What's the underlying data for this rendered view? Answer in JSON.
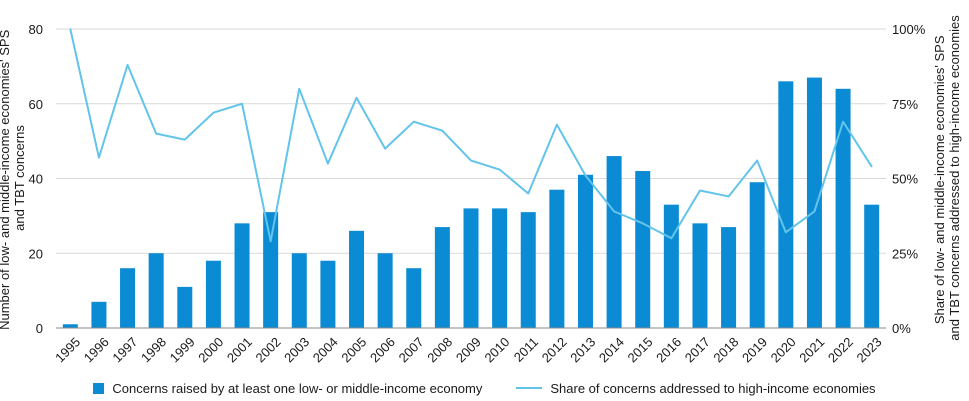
{
  "colors": {
    "bar": "#0a8bd3",
    "line": "#63c4ea",
    "grid": "#d9d9d9"
  },
  "chart_data": {
    "type": "bar",
    "categories": [
      "1995",
      "1996",
      "1997",
      "1998",
      "1999",
      "2000",
      "2001",
      "2002",
      "2003",
      "2004",
      "2005",
      "2006",
      "2007",
      "2008",
      "2009",
      "2010",
      "2011",
      "2012",
      "2013",
      "2014",
      "2015",
      "2016",
      "2017",
      "2018",
      "2019",
      "2020",
      "2021",
      "2022",
      "2023"
    ],
    "series": [
      {
        "name": "Concerns raised by at least one low- or middle-income economy",
        "type": "bar",
        "axis": "left",
        "values": [
          1,
          7,
          16,
          20,
          11,
          18,
          28,
          31,
          20,
          18,
          26,
          20,
          16,
          27,
          32,
          32,
          31,
          37,
          41,
          46,
          42,
          33,
          28,
          27,
          39,
          66,
          67,
          64,
          33
        ]
      },
      {
        "name": "Share of concerns addressed to high-income economies",
        "type": "line",
        "axis": "right",
        "values": [
          100,
          57,
          88,
          65,
          63,
          72,
          75,
          29,
          80,
          55,
          77,
          60,
          69,
          66,
          56,
          53,
          45,
          68,
          51,
          39,
          35,
          30,
          46,
          44,
          56,
          32,
          39,
          69,
          54
        ]
      }
    ],
    "ylabel": "Number of low- and middle-income economies' SPS and TBT concerns",
    "y2label": "Share of low- and middle-income economies' SPS and TBT concerns  addressed to high-income economies",
    "ylim": [
      0,
      80
    ],
    "yticks": [
      0,
      20,
      40,
      60,
      80
    ],
    "y2lim": [
      0,
      100
    ],
    "y2ticks": [
      "0%",
      "25%",
      "50%",
      "75%",
      "100%"
    ],
    "grid": true,
    "legend_position": "bottom"
  }
}
